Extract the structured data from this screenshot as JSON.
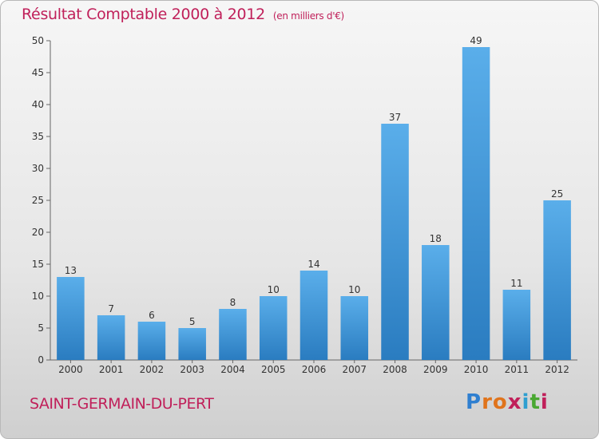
{
  "header": {
    "title": "Résultat Comptable 2000 à 2012",
    "subtitle": "(en milliers d'€)"
  },
  "footer": {
    "commune": "SAINT-GERMAIN-DU-PERT",
    "logo_letters": [
      "P",
      "r",
      "o",
      "x",
      "i",
      "t",
      "i"
    ],
    "logo_colors": [
      "#2f7fd0",
      "#e0741c",
      "#e0741c",
      "#c0205a",
      "#2f9fd0",
      "#4aa832",
      "#c0205a"
    ]
  },
  "chart_data": {
    "type": "bar",
    "categories": [
      "2000",
      "2001",
      "2002",
      "2003",
      "2004",
      "2005",
      "2006",
      "2007",
      "2008",
      "2009",
      "2010",
      "2011",
      "2012"
    ],
    "values": [
      13,
      7,
      6,
      5,
      8,
      10,
      14,
      10,
      37,
      18,
      49,
      11,
      25
    ],
    "value_labels": [
      "13",
      "7",
      "6",
      "5",
      "8",
      "10",
      "14",
      "10",
      "37",
      "18",
      "49",
      "11",
      "25"
    ],
    "title": "Résultat Comptable 2000 à 2012",
    "xlabel": "",
    "ylabel": "",
    "ylim": [
      0,
      50
    ],
    "yticks": [
      0,
      5,
      10,
      15,
      20,
      25,
      30,
      35,
      40,
      45,
      50
    ],
    "ytick_labels": [
      "0",
      "5",
      "10",
      "15",
      "20",
      "25",
      "30",
      "35",
      "40",
      "45",
      "50"
    ],
    "grid": false,
    "bar_color_top": "#5aaeea",
    "bar_color_bottom": "#2a7cc0"
  }
}
